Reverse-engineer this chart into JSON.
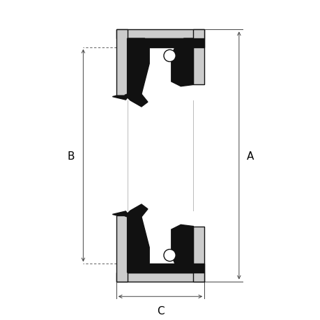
{
  "bg_color": "#ffffff",
  "fill_black": "#111111",
  "fill_gray": "#cccccc",
  "fill_white": "#ffffff",
  "dim_color": "#444444",
  "label_fontsize": 11,
  "fig_width": 4.6,
  "fig_height": 4.6,
  "dpi": 100,
  "label_A": "A",
  "label_B": "B",
  "label_C": "C",
  "xlim": [
    0,
    10
  ],
  "ylim": [
    0,
    10
  ]
}
